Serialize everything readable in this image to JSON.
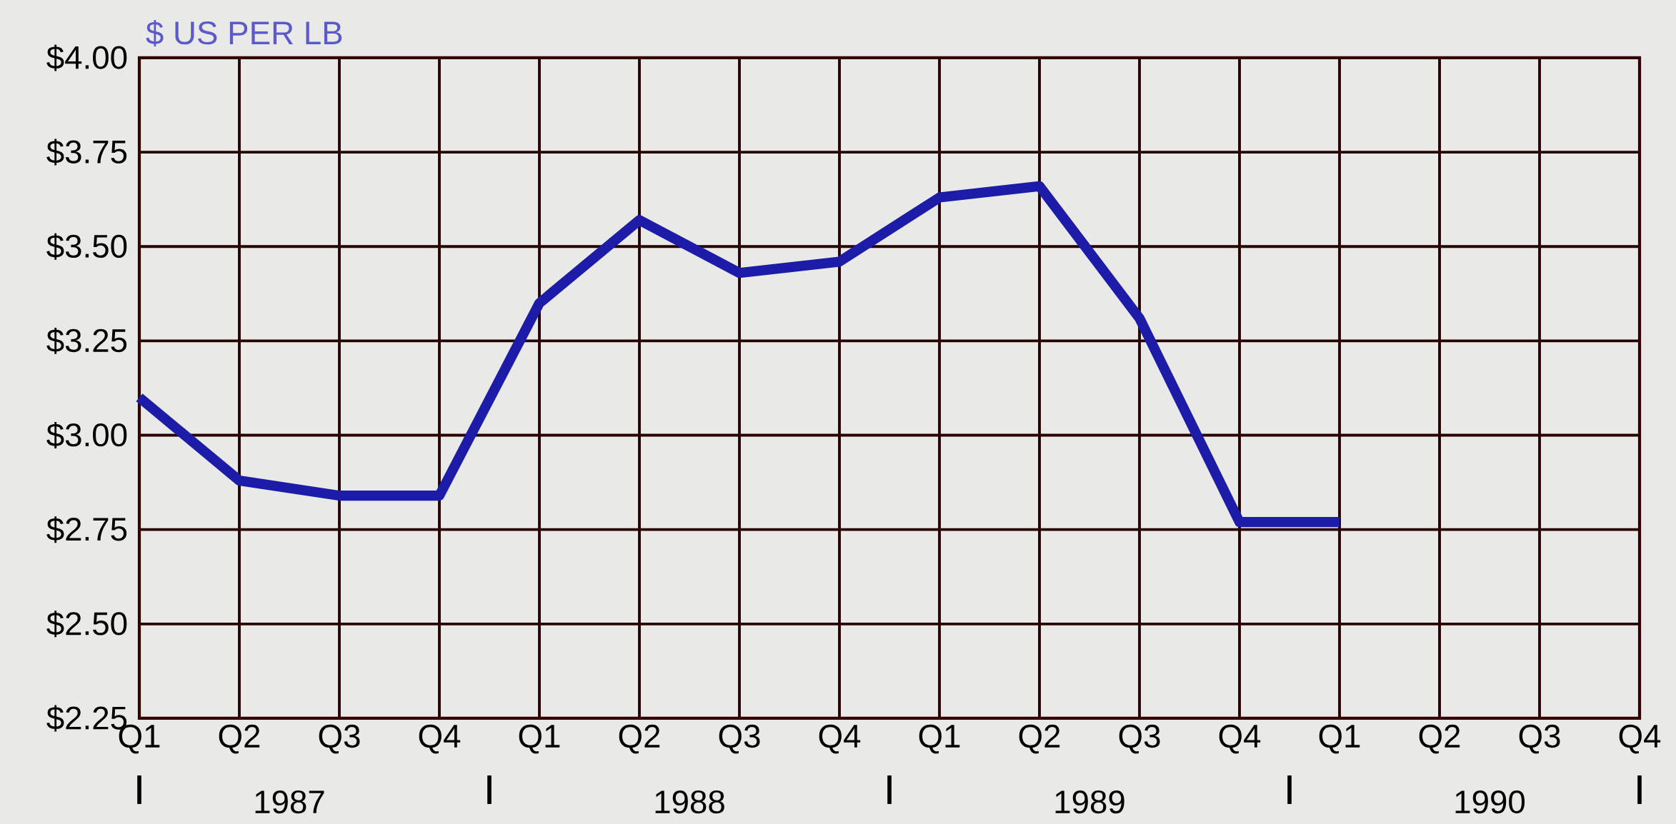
{
  "chart_data": {
    "type": "line",
    "ylabel": "$ US PER LB",
    "categories": [
      "Q1",
      "Q2",
      "Q3",
      "Q4",
      "Q1",
      "Q2",
      "Q3",
      "Q4",
      "Q1",
      "Q2",
      "Q3",
      "Q4",
      "Q1",
      "Q2",
      "Q3",
      "Q4"
    ],
    "series": [
      {
        "color": "#1c1ca8",
        "values": [
          3.1,
          2.88,
          2.84,
          2.84,
          3.35,
          3.57,
          3.43,
          3.46,
          3.63,
          3.66,
          3.31,
          2.77,
          2.77,
          null,
          null,
          null
        ]
      }
    ],
    "ylim": [
      2.25,
      4.0
    ],
    "yticks": [
      {
        "value": 2.25,
        "label": "$2.25"
      },
      {
        "value": 2.5,
        "label": "$2.50"
      },
      {
        "value": 2.75,
        "label": "$2.75"
      },
      {
        "value": 3.0,
        "label": "$3.00"
      },
      {
        "value": 3.25,
        "label": "$3.25"
      },
      {
        "value": 3.5,
        "label": "$3.50"
      },
      {
        "value": 3.75,
        "label": "$3.75"
      },
      {
        "value": 4.0,
        "label": "$4.00"
      }
    ],
    "annotations": [
      "1987",
      "1988",
      "1989",
      "1990"
    ],
    "grid": true,
    "marker": "none",
    "line_style": "solid"
  }
}
